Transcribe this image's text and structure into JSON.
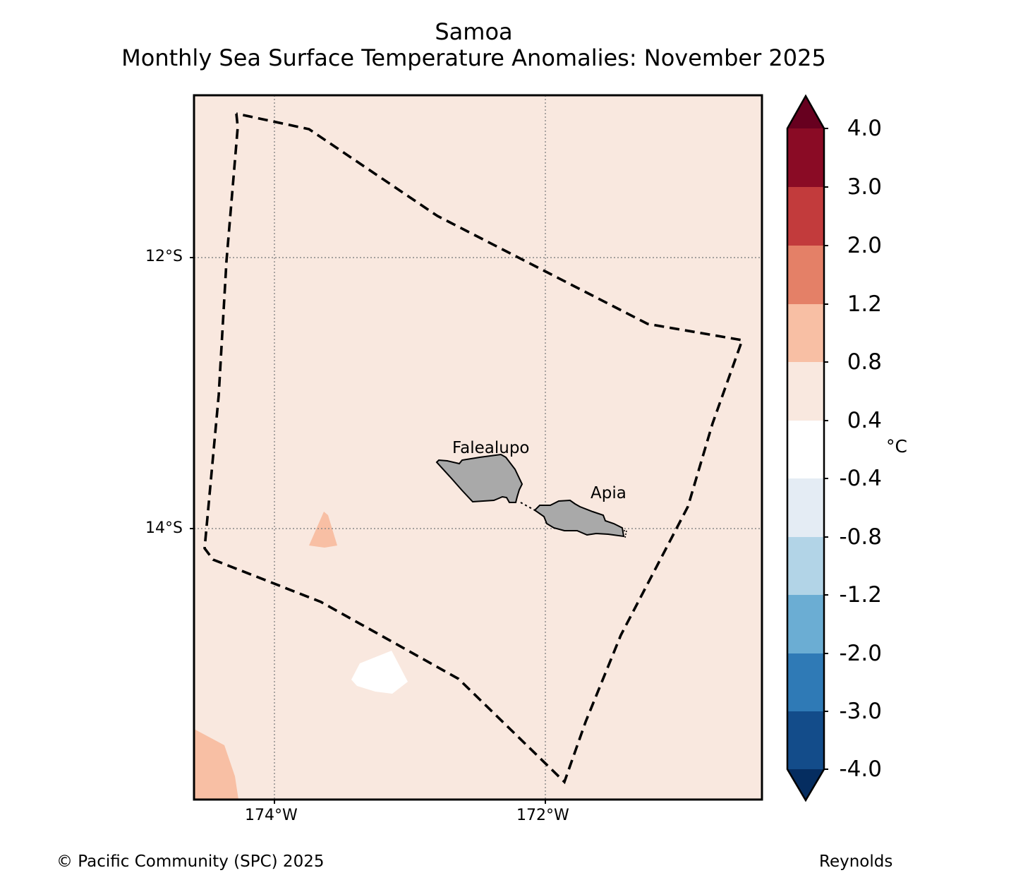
{
  "title": {
    "region": "Samoa",
    "subtitle": "Monthly Sea Surface Temperature Anomalies: November 2025"
  },
  "map": {
    "latitude_labels": [
      "12°S",
      "14°S"
    ],
    "longitude_labels": [
      "174°W",
      "172°W"
    ],
    "places": [
      "Falealupo",
      "Apia"
    ],
    "background_color": "#f9e8df"
  },
  "colorbar": {
    "unit": "°C",
    "tick_labels": [
      "4.0",
      "3.0",
      "2.0",
      "1.2",
      "0.8",
      "0.4",
      "-0.4",
      "-0.8",
      "-1.2",
      "-2.0",
      "-3.0",
      "-4.0"
    ],
    "colors_top_to_bottom": [
      "#67001f",
      "#8a0b25",
      "#c23b3c",
      "#e48067",
      "#f8bfa4",
      "#f9e8df",
      "#ffffff",
      "#e4ecf4",
      "#b2d4e7",
      "#6badd3",
      "#2f7ab6",
      "#134c8a",
      "#052d60"
    ]
  },
  "footer": {
    "copyright": "© Pacific Community (SPC) 2025",
    "source": "Reynolds"
  }
}
